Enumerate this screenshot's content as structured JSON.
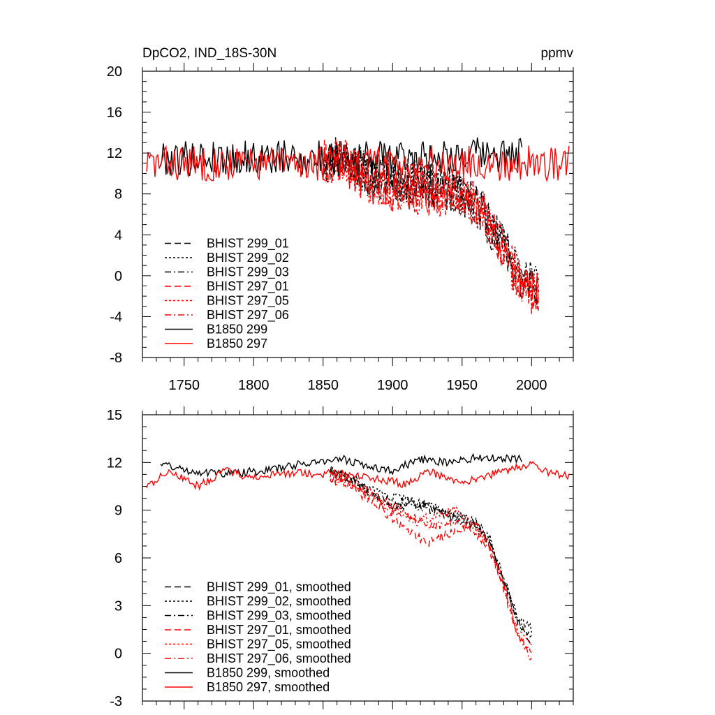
{
  "figure": {
    "title_left": "DpCO2, IND_18S-30N",
    "title_right": "ppmv"
  },
  "colors": {
    "black": "#000000",
    "red": "#ff0000"
  },
  "chart_data": [
    {
      "type": "line",
      "id": "top",
      "title": "DpCO2, IND_18S-30N",
      "units": "ppmv",
      "xlim": [
        1720,
        2030
      ],
      "ylim": [
        -8,
        20
      ],
      "x_ticks": [
        1750,
        1800,
        1850,
        1900,
        1950,
        2000
      ],
      "x_tick_labels": [
        "1750",
        "1800",
        "1850",
        "1900",
        "1950",
        "2000"
      ],
      "y_ticks": [
        -8,
        -4,
        0,
        4,
        8,
        12,
        16,
        20
      ],
      "y_tick_labels": [
        "-8",
        "-4",
        "0",
        "4",
        "8",
        "12",
        "16",
        "20"
      ],
      "legend_position": "bottom-left",
      "series": [
        {
          "name": "BHIST 299_01",
          "label": "BHIST 299_01",
          "color": "#000000",
          "dash": "dash",
          "x_range": [
            1850,
            2005
          ],
          "path": [
            [
              1850,
              11
            ],
            [
              1862,
              12
            ],
            [
              1880,
              10
            ],
            [
              1900,
              9.5
            ],
            [
              1920,
              9
            ],
            [
              1940,
              8.5
            ],
            [
              1955,
              7.5
            ],
            [
              1965,
              6
            ],
            [
              1975,
              4
            ],
            [
              1985,
              1.5
            ],
            [
              1995,
              -0.5
            ],
            [
              2005,
              -1
            ]
          ],
          "amplitude": 4.5,
          "seed": 11
        },
        {
          "name": "BHIST 299_02",
          "label": "BHIST 299_02",
          "color": "#000000",
          "dash": "dot",
          "x_range": [
            1850,
            2005
          ],
          "path": [
            [
              1850,
              11
            ],
            [
              1862,
              12
            ],
            [
              1880,
              10
            ],
            [
              1900,
              9.5
            ],
            [
              1920,
              9
            ],
            [
              1940,
              8.5
            ],
            [
              1955,
              7.5
            ],
            [
              1965,
              6
            ],
            [
              1975,
              4
            ],
            [
              1985,
              1.5
            ],
            [
              1995,
              0
            ],
            [
              2005,
              -0.5
            ]
          ],
          "amplitude": 4.5,
          "seed": 23
        },
        {
          "name": "BHIST 299_03",
          "label": "BHIST 299_03",
          "color": "#000000",
          "dash": "dashdot",
          "x_range": [
            1850,
            2005
          ],
          "path": [
            [
              1850,
              11
            ],
            [
              1862,
              12
            ],
            [
              1880,
              10
            ],
            [
              1900,
              9.5
            ],
            [
              1920,
              9
            ],
            [
              1940,
              8.5
            ],
            [
              1955,
              7.5
            ],
            [
              1965,
              6
            ],
            [
              1975,
              4
            ],
            [
              1985,
              1.5
            ],
            [
              1995,
              -0.5
            ],
            [
              2005,
              -1
            ]
          ],
          "amplitude": 4.5,
          "seed": 37
        },
        {
          "name": "BHIST 297_01",
          "label": "BHIST 297_01",
          "color": "#ff0000",
          "dash": "dash",
          "x_range": [
            1850,
            2005
          ],
          "path": [
            [
              1850,
              11
            ],
            [
              1862,
              11.5
            ],
            [
              1880,
              9.5
            ],
            [
              1900,
              8.5
            ],
            [
              1920,
              8
            ],
            [
              1940,
              8
            ],
            [
              1955,
              7.5
            ],
            [
              1965,
              6
            ],
            [
              1975,
              4
            ],
            [
              1985,
              1
            ],
            [
              1995,
              -1
            ],
            [
              2005,
              -2
            ]
          ],
          "amplitude": 4.5,
          "seed": 41
        },
        {
          "name": "BHIST 297_05",
          "label": "BHIST 297_05",
          "color": "#ff0000",
          "dash": "dot",
          "x_range": [
            1850,
            2005
          ],
          "path": [
            [
              1850,
              11
            ],
            [
              1862,
              11.5
            ],
            [
              1880,
              9.5
            ],
            [
              1900,
              8.5
            ],
            [
              1920,
              8
            ],
            [
              1940,
              8
            ],
            [
              1955,
              7.5
            ],
            [
              1965,
              6
            ],
            [
              1975,
              4
            ],
            [
              1985,
              1
            ],
            [
              1995,
              -1
            ],
            [
              2005,
              -1.5
            ]
          ],
          "amplitude": 4.5,
          "seed": 53
        },
        {
          "name": "BHIST 297_06",
          "label": "BHIST 297_06",
          "color": "#ff0000",
          "dash": "dashdot",
          "x_range": [
            1850,
            2005
          ],
          "path": [
            [
              1850,
              11
            ],
            [
              1862,
              11.5
            ],
            [
              1880,
              9.5
            ],
            [
              1900,
              8.5
            ],
            [
              1920,
              8
            ],
            [
              1940,
              8
            ],
            [
              1955,
              7.5
            ],
            [
              1965,
              6
            ],
            [
              1975,
              4
            ],
            [
              1985,
              1
            ],
            [
              1995,
              -1
            ],
            [
              2005,
              -2.5
            ]
          ],
          "amplitude": 4.5,
          "seed": 67
        },
        {
          "name": "B1850 299",
          "label": "B1850 299",
          "color": "#000000",
          "dash": "solid",
          "x_range": [
            1733,
            1993
          ],
          "path": [
            [
              1733,
              11.5
            ],
            [
              1800,
              11.5
            ],
            [
              1850,
              11.5
            ],
            [
              1900,
              11.5
            ],
            [
              1950,
              11.8
            ],
            [
              1993,
              11.8
            ]
          ],
          "amplitude": 3.5,
          "seed": 79
        },
        {
          "name": "B1850 297",
          "label": "B1850 297",
          "color": "#ff0000",
          "dash": "solid",
          "x_range": [
            1723,
            2027
          ],
          "path": [
            [
              1723,
              11
            ],
            [
              1800,
              11
            ],
            [
              1850,
              11
            ],
            [
              1900,
              11
            ],
            [
              1950,
              11
            ],
            [
              2027,
              11
            ]
          ],
          "amplitude": 3.5,
          "seed": 83
        }
      ]
    },
    {
      "type": "line",
      "id": "bottom",
      "xlim": [
        1720,
        2030
      ],
      "ylim": [
        -3,
        15
      ],
      "x_ticks": [
        1750,
        1800,
        1850,
        1900,
        1950,
        2000
      ],
      "x_tick_labels": [],
      "y_ticks": [
        -3,
        0,
        3,
        6,
        9,
        12,
        15
      ],
      "y_tick_labels": [
        "-3",
        "0",
        "3",
        "6",
        "9",
        "12",
        "15"
      ],
      "legend_position": "bottom-left",
      "series": [
        {
          "name": "BHIST 299_01, smoothed",
          "label": "BHIST 299_01, smoothed",
          "color": "#000000",
          "dash": "dash",
          "x_range": [
            1855,
            2000
          ],
          "path": [
            [
              1855,
              11.5
            ],
            [
              1870,
              11
            ],
            [
              1885,
              10
            ],
            [
              1900,
              9.5
            ],
            [
              1915,
              9.5
            ],
            [
              1930,
              9
            ],
            [
              1945,
              8.5
            ],
            [
              1960,
              8.2
            ],
            [
              1970,
              7
            ],
            [
              1980,
              4.5
            ],
            [
              1990,
              2
            ],
            [
              2000,
              1
            ]
          ],
          "amplitude": 0.6,
          "seed": 101
        },
        {
          "name": "BHIST 299_02, smoothed",
          "label": "BHIST 299_02, smoothed",
          "color": "#000000",
          "dash": "dot",
          "x_range": [
            1855,
            2000
          ],
          "path": [
            [
              1855,
              11.5
            ],
            [
              1870,
              11
            ],
            [
              1885,
              10.2
            ],
            [
              1900,
              9.8
            ],
            [
              1915,
              9.5
            ],
            [
              1930,
              9.2
            ],
            [
              1945,
              8.7
            ],
            [
              1960,
              8.3
            ],
            [
              1970,
              7.2
            ],
            [
              1980,
              4.8
            ],
            [
              1990,
              2.3
            ],
            [
              2000,
              1.5
            ]
          ],
          "amplitude": 0.6,
          "seed": 103
        },
        {
          "name": "BHIST 299_03, smoothed",
          "label": "BHIST 299_03, smoothed",
          "color": "#000000",
          "dash": "dashdot",
          "x_range": [
            1855,
            2000
          ],
          "path": [
            [
              1855,
              11.5
            ],
            [
              1870,
              11
            ],
            [
              1885,
              10
            ],
            [
              1900,
              9.3
            ],
            [
              1915,
              9.3
            ],
            [
              1930,
              9
            ],
            [
              1945,
              8.5
            ],
            [
              1960,
              8
            ],
            [
              1970,
              7
            ],
            [
              1980,
              4.5
            ],
            [
              1990,
              2
            ],
            [
              2000,
              0.8
            ]
          ],
          "amplitude": 0.6,
          "seed": 107
        },
        {
          "name": "BHIST 297_01, smoothed",
          "label": "BHIST 297_01, smoothed",
          "color": "#ff0000",
          "dash": "dash",
          "x_range": [
            1855,
            2000
          ],
          "path": [
            [
              1855,
              11
            ],
            [
              1870,
              10.5
            ],
            [
              1885,
              9.5
            ],
            [
              1900,
              8.5
            ],
            [
              1915,
              7.5
            ],
            [
              1925,
              7
            ],
            [
              1940,
              7.5
            ],
            [
              1955,
              8
            ],
            [
              1970,
              6.5
            ],
            [
              1980,
              4
            ],
            [
              1990,
              1
            ],
            [
              2000,
              0
            ]
          ],
          "amplitude": 0.6,
          "seed": 109
        },
        {
          "name": "BHIST 297_05, smoothed",
          "label": "BHIST 297_05, smoothed",
          "color": "#ff0000",
          "dash": "dot",
          "x_range": [
            1855,
            2000
          ],
          "path": [
            [
              1855,
              11
            ],
            [
              1870,
              11
            ],
            [
              1885,
              10
            ],
            [
              1900,
              9.2
            ],
            [
              1915,
              8.5
            ],
            [
              1930,
              8.5
            ],
            [
              1945,
              9
            ],
            [
              1955,
              8.5
            ],
            [
              1970,
              6.8
            ],
            [
              1980,
              4.3
            ],
            [
              1990,
              1.5
            ],
            [
              2000,
              0.5
            ]
          ],
          "amplitude": 0.6,
          "seed": 113
        },
        {
          "name": "BHIST 297_06, smoothed",
          "label": "BHIST 297_06, smoothed",
          "color": "#ff0000",
          "dash": "dashdot",
          "x_range": [
            1855,
            2000
          ],
          "path": [
            [
              1855,
              11.2
            ],
            [
              1870,
              10.8
            ],
            [
              1885,
              9.8
            ],
            [
              1900,
              9
            ],
            [
              1915,
              8.3
            ],
            [
              1930,
              8
            ],
            [
              1945,
              8.3
            ],
            [
              1960,
              8
            ],
            [
              1970,
              6.6
            ],
            [
              1980,
              4.2
            ],
            [
              1990,
              1.3
            ],
            [
              2000,
              -0.5
            ]
          ],
          "amplitude": 0.6,
          "seed": 127
        },
        {
          "name": "B1850 299, smoothed",
          "label": "B1850 299, smoothed",
          "color": "#000000",
          "dash": "solid",
          "x_range": [
            1733,
            1993
          ],
          "path": [
            [
              1733,
              12
            ],
            [
              1750,
              11.5
            ],
            [
              1780,
              11.3
            ],
            [
              1810,
              11.5
            ],
            [
              1840,
              12
            ],
            [
              1865,
              12.2
            ],
            [
              1885,
              11.7
            ],
            [
              1900,
              11.5
            ],
            [
              1920,
              12.2
            ],
            [
              1940,
              12
            ],
            [
              1960,
              12.3
            ],
            [
              1975,
              12.3
            ],
            [
              1993,
              12.2
            ]
          ],
          "amplitude": 0.5,
          "seed": 131
        },
        {
          "name": "B1850 297, smoothed",
          "label": "B1850 297, smoothed",
          "color": "#ff0000",
          "dash": "solid",
          "x_range": [
            1723,
            2027
          ],
          "path": [
            [
              1723,
              10.5
            ],
            [
              1740,
              11.5
            ],
            [
              1760,
              10.5
            ],
            [
              1780,
              11.5
            ],
            [
              1800,
              11
            ],
            [
              1820,
              11.3
            ],
            [
              1850,
              11.3
            ],
            [
              1870,
              11.3
            ],
            [
              1885,
              11
            ],
            [
              1900,
              10.8
            ],
            [
              1910,
              10.6
            ],
            [
              1925,
              11.5
            ],
            [
              1945,
              10.8
            ],
            [
              1960,
              10.9
            ],
            [
              1980,
              11.5
            ],
            [
              2000,
              11.9
            ],
            [
              2015,
              11.3
            ],
            [
              2027,
              11.2
            ]
          ],
          "amplitude": 0.5,
          "seed": 137
        }
      ]
    }
  ]
}
